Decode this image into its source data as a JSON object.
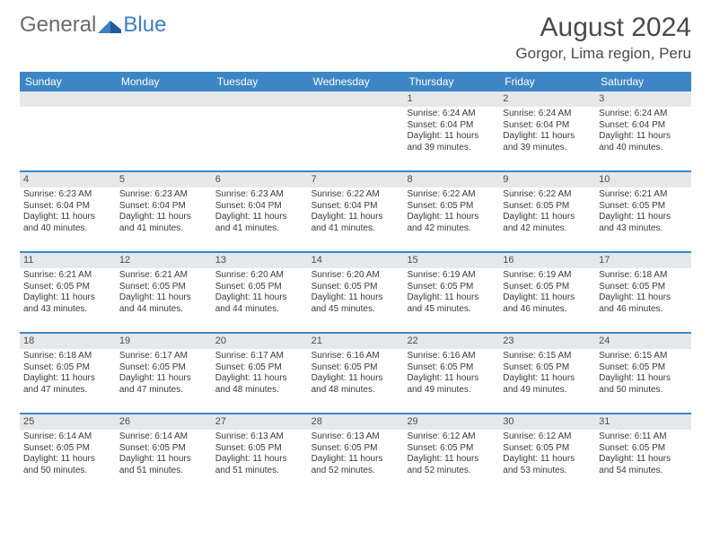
{
  "logo": {
    "text_part1": "General",
    "text_part2": "Blue"
  },
  "header": {
    "month_title": "August 2024",
    "location": "Gorgor, Lima region, Peru"
  },
  "colors": {
    "header_bar": "#3d86c6",
    "daynum_bg": "#e5e8ea",
    "week_border": "#3d86c6",
    "text": "#3a3a3a",
    "title_text": "#4a4a4a",
    "logo_gray": "#6a6a6a",
    "logo_blue": "#3d7fc1"
  },
  "days_of_week": [
    "Sunday",
    "Monday",
    "Tuesday",
    "Wednesday",
    "Thursday",
    "Friday",
    "Saturday"
  ],
  "weeks": [
    [
      {
        "n": "",
        "sunrise": "",
        "sunset": "",
        "daylight": ""
      },
      {
        "n": "",
        "sunrise": "",
        "sunset": "",
        "daylight": ""
      },
      {
        "n": "",
        "sunrise": "",
        "sunset": "",
        "daylight": ""
      },
      {
        "n": "",
        "sunrise": "",
        "sunset": "",
        "daylight": ""
      },
      {
        "n": "1",
        "sunrise": "Sunrise: 6:24 AM",
        "sunset": "Sunset: 6:04 PM",
        "daylight": "Daylight: 11 hours and 39 minutes."
      },
      {
        "n": "2",
        "sunrise": "Sunrise: 6:24 AM",
        "sunset": "Sunset: 6:04 PM",
        "daylight": "Daylight: 11 hours and 39 minutes."
      },
      {
        "n": "3",
        "sunrise": "Sunrise: 6:24 AM",
        "sunset": "Sunset: 6:04 PM",
        "daylight": "Daylight: 11 hours and 40 minutes."
      }
    ],
    [
      {
        "n": "4",
        "sunrise": "Sunrise: 6:23 AM",
        "sunset": "Sunset: 6:04 PM",
        "daylight": "Daylight: 11 hours and 40 minutes."
      },
      {
        "n": "5",
        "sunrise": "Sunrise: 6:23 AM",
        "sunset": "Sunset: 6:04 PM",
        "daylight": "Daylight: 11 hours and 41 minutes."
      },
      {
        "n": "6",
        "sunrise": "Sunrise: 6:23 AM",
        "sunset": "Sunset: 6:04 PM",
        "daylight": "Daylight: 11 hours and 41 minutes."
      },
      {
        "n": "7",
        "sunrise": "Sunrise: 6:22 AM",
        "sunset": "Sunset: 6:04 PM",
        "daylight": "Daylight: 11 hours and 41 minutes."
      },
      {
        "n": "8",
        "sunrise": "Sunrise: 6:22 AM",
        "sunset": "Sunset: 6:05 PM",
        "daylight": "Daylight: 11 hours and 42 minutes."
      },
      {
        "n": "9",
        "sunrise": "Sunrise: 6:22 AM",
        "sunset": "Sunset: 6:05 PM",
        "daylight": "Daylight: 11 hours and 42 minutes."
      },
      {
        "n": "10",
        "sunrise": "Sunrise: 6:21 AM",
        "sunset": "Sunset: 6:05 PM",
        "daylight": "Daylight: 11 hours and 43 minutes."
      }
    ],
    [
      {
        "n": "11",
        "sunrise": "Sunrise: 6:21 AM",
        "sunset": "Sunset: 6:05 PM",
        "daylight": "Daylight: 11 hours and 43 minutes."
      },
      {
        "n": "12",
        "sunrise": "Sunrise: 6:21 AM",
        "sunset": "Sunset: 6:05 PM",
        "daylight": "Daylight: 11 hours and 44 minutes."
      },
      {
        "n": "13",
        "sunrise": "Sunrise: 6:20 AM",
        "sunset": "Sunset: 6:05 PM",
        "daylight": "Daylight: 11 hours and 44 minutes."
      },
      {
        "n": "14",
        "sunrise": "Sunrise: 6:20 AM",
        "sunset": "Sunset: 6:05 PM",
        "daylight": "Daylight: 11 hours and 45 minutes."
      },
      {
        "n": "15",
        "sunrise": "Sunrise: 6:19 AM",
        "sunset": "Sunset: 6:05 PM",
        "daylight": "Daylight: 11 hours and 45 minutes."
      },
      {
        "n": "16",
        "sunrise": "Sunrise: 6:19 AM",
        "sunset": "Sunset: 6:05 PM",
        "daylight": "Daylight: 11 hours and 46 minutes."
      },
      {
        "n": "17",
        "sunrise": "Sunrise: 6:18 AM",
        "sunset": "Sunset: 6:05 PM",
        "daylight": "Daylight: 11 hours and 46 minutes."
      }
    ],
    [
      {
        "n": "18",
        "sunrise": "Sunrise: 6:18 AM",
        "sunset": "Sunset: 6:05 PM",
        "daylight": "Daylight: 11 hours and 47 minutes."
      },
      {
        "n": "19",
        "sunrise": "Sunrise: 6:17 AM",
        "sunset": "Sunset: 6:05 PM",
        "daylight": "Daylight: 11 hours and 47 minutes."
      },
      {
        "n": "20",
        "sunrise": "Sunrise: 6:17 AM",
        "sunset": "Sunset: 6:05 PM",
        "daylight": "Daylight: 11 hours and 48 minutes."
      },
      {
        "n": "21",
        "sunrise": "Sunrise: 6:16 AM",
        "sunset": "Sunset: 6:05 PM",
        "daylight": "Daylight: 11 hours and 48 minutes."
      },
      {
        "n": "22",
        "sunrise": "Sunrise: 6:16 AM",
        "sunset": "Sunset: 6:05 PM",
        "daylight": "Daylight: 11 hours and 49 minutes."
      },
      {
        "n": "23",
        "sunrise": "Sunrise: 6:15 AM",
        "sunset": "Sunset: 6:05 PM",
        "daylight": "Daylight: 11 hours and 49 minutes."
      },
      {
        "n": "24",
        "sunrise": "Sunrise: 6:15 AM",
        "sunset": "Sunset: 6:05 PM",
        "daylight": "Daylight: 11 hours and 50 minutes."
      }
    ],
    [
      {
        "n": "25",
        "sunrise": "Sunrise: 6:14 AM",
        "sunset": "Sunset: 6:05 PM",
        "daylight": "Daylight: 11 hours and 50 minutes."
      },
      {
        "n": "26",
        "sunrise": "Sunrise: 6:14 AM",
        "sunset": "Sunset: 6:05 PM",
        "daylight": "Daylight: 11 hours and 51 minutes."
      },
      {
        "n": "27",
        "sunrise": "Sunrise: 6:13 AM",
        "sunset": "Sunset: 6:05 PM",
        "daylight": "Daylight: 11 hours and 51 minutes."
      },
      {
        "n": "28",
        "sunrise": "Sunrise: 6:13 AM",
        "sunset": "Sunset: 6:05 PM",
        "daylight": "Daylight: 11 hours and 52 minutes."
      },
      {
        "n": "29",
        "sunrise": "Sunrise: 6:12 AM",
        "sunset": "Sunset: 6:05 PM",
        "daylight": "Daylight: 11 hours and 52 minutes."
      },
      {
        "n": "30",
        "sunrise": "Sunrise: 6:12 AM",
        "sunset": "Sunset: 6:05 PM",
        "daylight": "Daylight: 11 hours and 53 minutes."
      },
      {
        "n": "31",
        "sunrise": "Sunrise: 6:11 AM",
        "sunset": "Sunset: 6:05 PM",
        "daylight": "Daylight: 11 hours and 54 minutes."
      }
    ]
  ]
}
